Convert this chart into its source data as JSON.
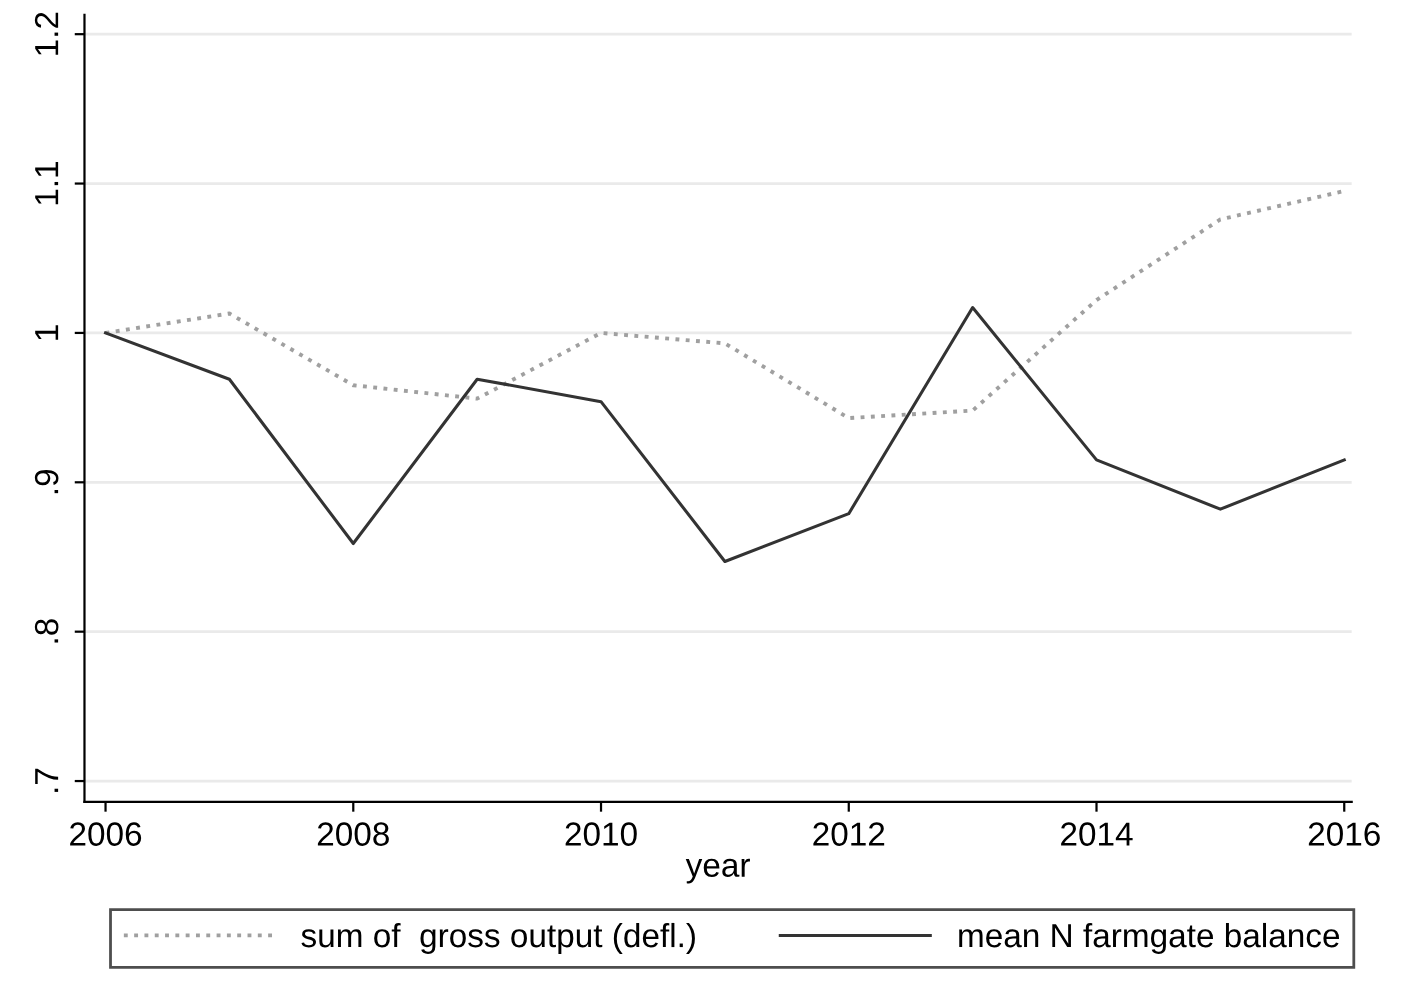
{
  "chart_data": {
    "type": "line",
    "xlabel": "year",
    "x": [
      2006,
      2007,
      2008,
      2009,
      2010,
      2011,
      2012,
      2013,
      2014,
      2015,
      2016
    ],
    "series": [
      {
        "name": "sum of  gross output (defl.)",
        "color": "#a0a0a0",
        "line_style": "dotted",
        "values": [
          1.0,
          1.013,
          0.965,
          0.956,
          1.0,
          0.993,
          0.943,
          0.948,
          1.022,
          1.076,
          1.095
        ]
      },
      {
        "name": "mean N farmgate balance",
        "color": "#333333",
        "line_style": "solid",
        "values": [
          1.0,
          0.969,
          0.859,
          0.969,
          0.954,
          0.847,
          0.879,
          1.017,
          0.915,
          0.882,
          0.915
        ]
      }
    ],
    "xlim": [
      2005.83,
      2016.06
    ],
    "xticks": [
      2006,
      2008,
      2010,
      2012,
      2014,
      2016
    ],
    "ylim": [
      0.686,
      1.213
    ],
    "yticks": [
      {
        "value": 0.7,
        "label": ".7"
      },
      {
        "value": 0.8,
        "label": ".8"
      },
      {
        "value": 0.9,
        "label": ".9"
      },
      {
        "value": 1.0,
        "label": "1"
      },
      {
        "value": 1.1,
        "label": "1.1"
      },
      {
        "value": 1.2,
        "label": "1.2"
      }
    ],
    "grid": "y",
    "legend": "bottom",
    "marker": "none"
  }
}
